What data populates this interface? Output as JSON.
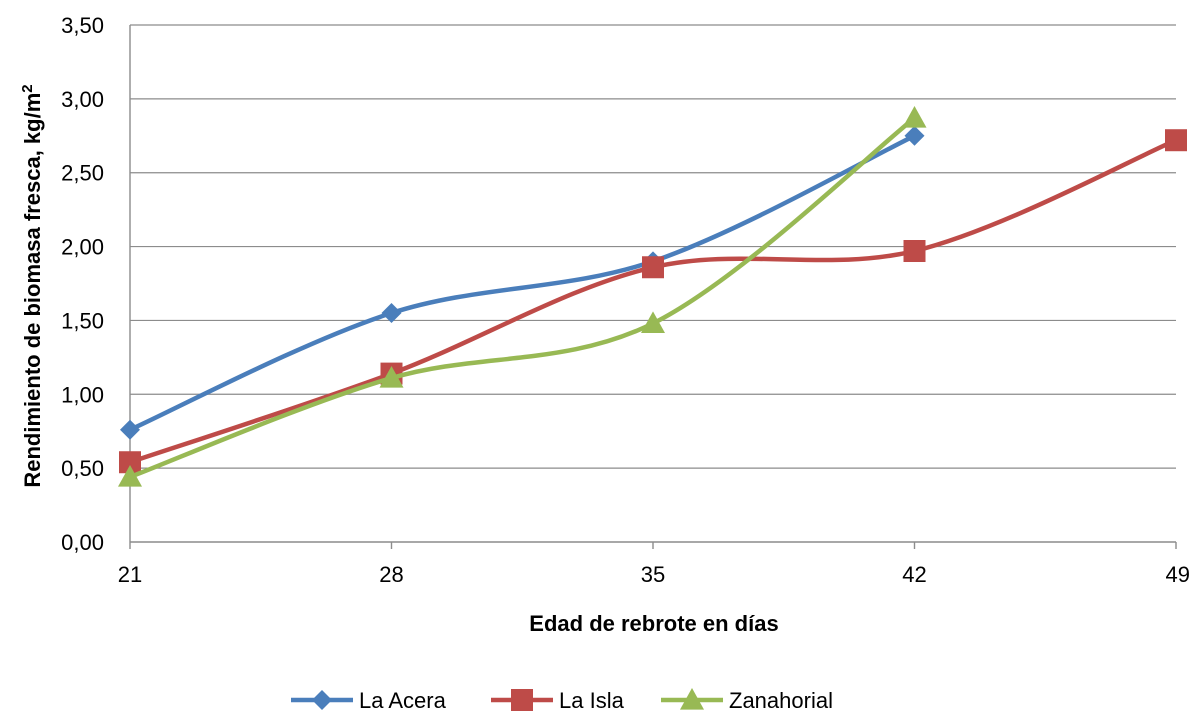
{
  "chart_data": {
    "type": "line",
    "title": "",
    "xlabel": "Edad de rebrote en días",
    "ylabel": "Rendimiento de biomasa fresca, kg/m²",
    "ylabel_main": "Rendimiento de biomasa fresca, kg/m",
    "ylabel_sup": "2",
    "x": [
      21,
      28,
      35,
      42,
      49
    ],
    "x_tick_labels": [
      "21",
      "28",
      "35",
      "42",
      "49"
    ],
    "y_ticks": [
      0,
      0.5,
      1.0,
      1.5,
      2.0,
      2.5,
      3.0,
      3.5
    ],
    "y_tick_labels": [
      "0,00",
      "0,50",
      "1,00",
      "1,50",
      "2,00",
      "2,50",
      "3,00",
      "3,50"
    ],
    "ylim": [
      0,
      3.5
    ],
    "grid": "horizontal",
    "legend_position": "bottom",
    "smooth": true,
    "series": [
      {
        "name": "La Acera",
        "color": "#4A7EBB",
        "marker": "diamond",
        "x": [
          21,
          28,
          35,
          42
        ],
        "values": [
          0.76,
          1.55,
          1.9,
          2.75
        ]
      },
      {
        "name": "La Isla",
        "color": "#BE4B48",
        "marker": "square",
        "x": [
          21,
          28,
          35,
          42,
          49
        ],
        "values": [
          0.54,
          1.14,
          1.86,
          1.97,
          2.72
        ]
      },
      {
        "name": "Zanahorial",
        "color": "#98B954",
        "marker": "triangle",
        "x": [
          21,
          28,
          35,
          42
        ],
        "values": [
          0.44,
          1.11,
          1.48,
          2.87
        ]
      }
    ]
  }
}
